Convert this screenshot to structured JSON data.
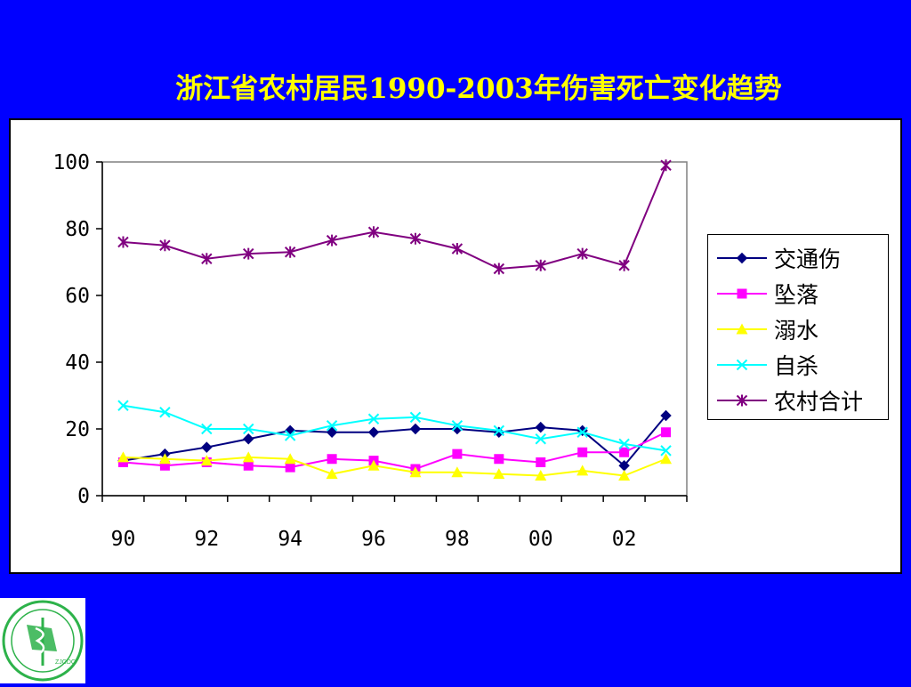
{
  "slide": {
    "title": "浙江省农村居民1990-2003年伤害死亡变化趋势"
  },
  "chart_data": {
    "type": "line",
    "title": "浙江省农村居民1990-2003年伤害死亡变化趋势",
    "x": [
      90,
      91,
      92,
      93,
      94,
      95,
      96,
      97,
      98,
      99,
      0,
      1,
      2,
      3
    ],
    "x_tick_labels": [
      "90",
      "92",
      "94",
      "96",
      "98",
      "00",
      "02"
    ],
    "xlabel": "",
    "ylabel": "",
    "ylim": [
      0,
      100
    ],
    "y_tick_labels": [
      "0",
      "20",
      "40",
      "60",
      "80",
      "100"
    ],
    "grid": false,
    "legend_position": "right",
    "series": [
      {
        "name": "交通伤",
        "color": "#000080",
        "marker": "diamond",
        "values": [
          10.5,
          12.5,
          14.5,
          17,
          19.5,
          19,
          19,
          20,
          20,
          19,
          20.5,
          19.5,
          9,
          24
        ]
      },
      {
        "name": "坠落",
        "color": "#ff00ff",
        "marker": "square",
        "values": [
          10,
          9,
          10,
          9,
          8.5,
          11,
          10.5,
          8,
          12.5,
          11,
          10,
          13,
          13,
          19
        ]
      },
      {
        "name": "溺水",
        "color": "#ffff00",
        "marker": "triangle",
        "values": [
          11.5,
          11,
          10.5,
          11.5,
          11,
          6.5,
          9,
          7,
          7,
          6.5,
          6,
          7.5,
          6,
          11
        ]
      },
      {
        "name": "自杀",
        "color": "#00ffff",
        "marker": "x",
        "values": [
          27,
          25,
          20,
          20,
          18,
          21,
          23,
          23.5,
          21,
          19.5,
          17,
          19,
          15.5,
          13.5
        ]
      },
      {
        "name": "农村合计",
        "color": "#800080",
        "marker": "star",
        "values": [
          76,
          75,
          71,
          72.5,
          73,
          76.5,
          79,
          77,
          74,
          68,
          69,
          72.5,
          69,
          99
        ]
      }
    ]
  },
  "logo": {
    "text": "ZJCDC",
    "icon": "zjcdc-emblem-icon",
    "color": "#2db24a"
  }
}
